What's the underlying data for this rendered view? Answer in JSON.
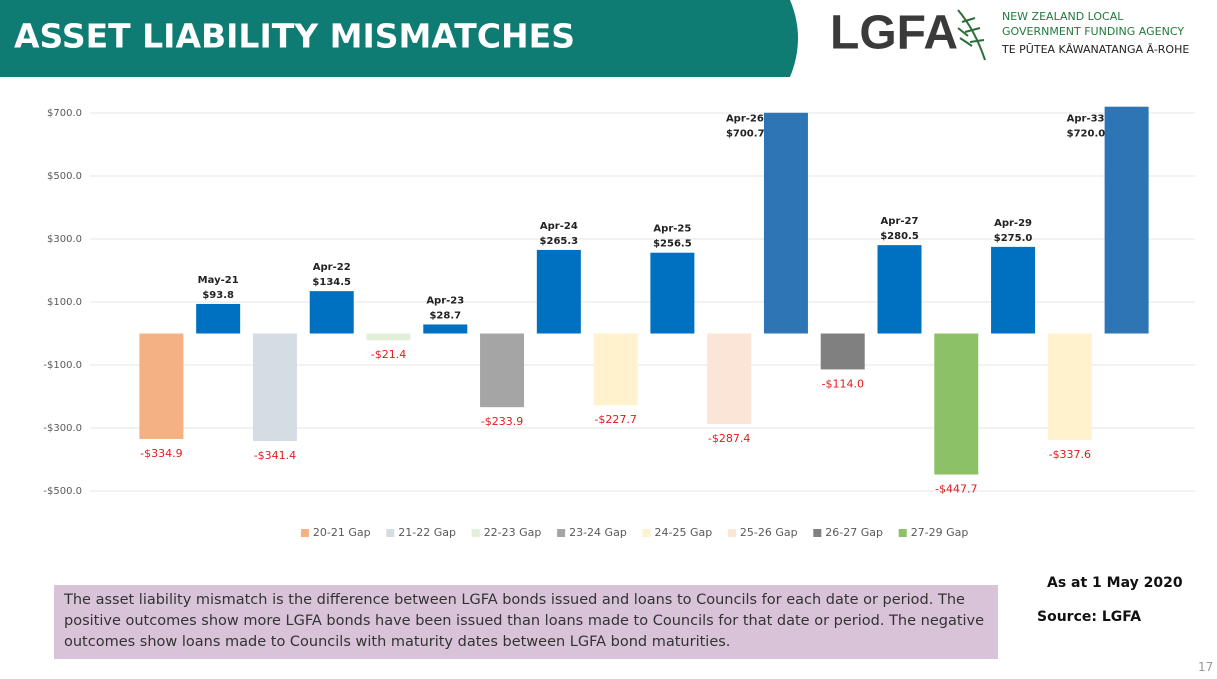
{
  "header": {
    "title": "ASSET LIABILITY MISMATCHES",
    "logo": "LGFA",
    "org_lines": [
      "NEW ZEALAND LOCAL",
      "GOVERNMENT FUNDING AGENCY",
      "TE PŪTEA KĀWANATANGA Ā-ROHE"
    ]
  },
  "chart_data": {
    "type": "bar",
    "categories": [
      null,
      "May-21",
      null,
      "Apr-22",
      null,
      "Apr-23",
      null,
      "Apr-24",
      null,
      "Apr-25",
      null,
      "Apr-26",
      null,
      "Apr-27",
      null,
      "Apr-29",
      null,
      "Apr-33"
    ],
    "values": [
      -334.9,
      93.8,
      -341.4,
      134.5,
      -21.4,
      28.7,
      -233.9,
      265.3,
      -227.7,
      256.5,
      -287.4,
      700.7,
      -114.0,
      280.5,
      -447.7,
      275.0,
      -337.6,
      720.0
    ],
    "value_labels": [
      "-$334.9",
      "$93.8",
      "-$341.4",
      "$134.5",
      "-$21.4",
      "$28.7",
      "-$233.9",
      "$265.3",
      "-$227.7",
      "$256.5",
      "-$287.4",
      "$700.7",
      "-$114.0",
      "$280.5",
      "-$447.7",
      "$275.0",
      "-$337.6",
      "$720.0"
    ],
    "colors": [
      "#f4b183",
      "#0070c0",
      "#d6dce4",
      "#0070c0",
      "#e2f0d9",
      "#0070c0",
      "#a5a5a5",
      "#0070c0",
      "#fff2cc",
      "#0070c0",
      "#fbe5d6",
      "#2e75b6",
      "#808080",
      "#0070c0",
      "#8cc168",
      "#0070c0",
      "#fff2cc",
      "#2e75b6"
    ],
    "negative_label_color": "#e31a1c",
    "ylim": [
      -500,
      720
    ],
    "yticks": [
      {
        "value": -500,
        "label": "-$500.0"
      },
      {
        "value": -300,
        "label": "-$300.0"
      },
      {
        "value": -100,
        "label": "-$100.0"
      },
      {
        "value": 100,
        "label": "$100.0"
      },
      {
        "value": 300,
        "label": "$300.0"
      },
      {
        "value": 500,
        "label": "$500.0"
      },
      {
        "value": 700,
        "label": "$700.0"
      }
    ],
    "grid": true,
    "legend": [
      {
        "name": "20-21 Gap",
        "color": "#f4b183"
      },
      {
        "name": "21-22 Gap",
        "color": "#d6dce4"
      },
      {
        "name": "22-23 Gap",
        "color": "#e2f0d9"
      },
      {
        "name": "23-24 Gap",
        "color": "#a5a5a5"
      },
      {
        "name": "24-25 Gap",
        "color": "#fff2cc"
      },
      {
        "name": "25-26 Gap",
        "color": "#fbe5d6"
      },
      {
        "name": "26-27 Gap",
        "color": "#808080"
      },
      {
        "name": "27-29 Gap",
        "color": "#8cc168"
      }
    ]
  },
  "note": "The asset liability mismatch is the difference between LGFA bonds issued and loans to Councils for each date or period. The positive outcomes show more LGFA bonds have been issued than loans made to Councils for that date or period. The negative outcomes show loans made to Councils with maturity dates between LGFA bond maturities.",
  "as_at": "As at 1 May 2020",
  "source": "Source: LGFA",
  "page_number": "17"
}
